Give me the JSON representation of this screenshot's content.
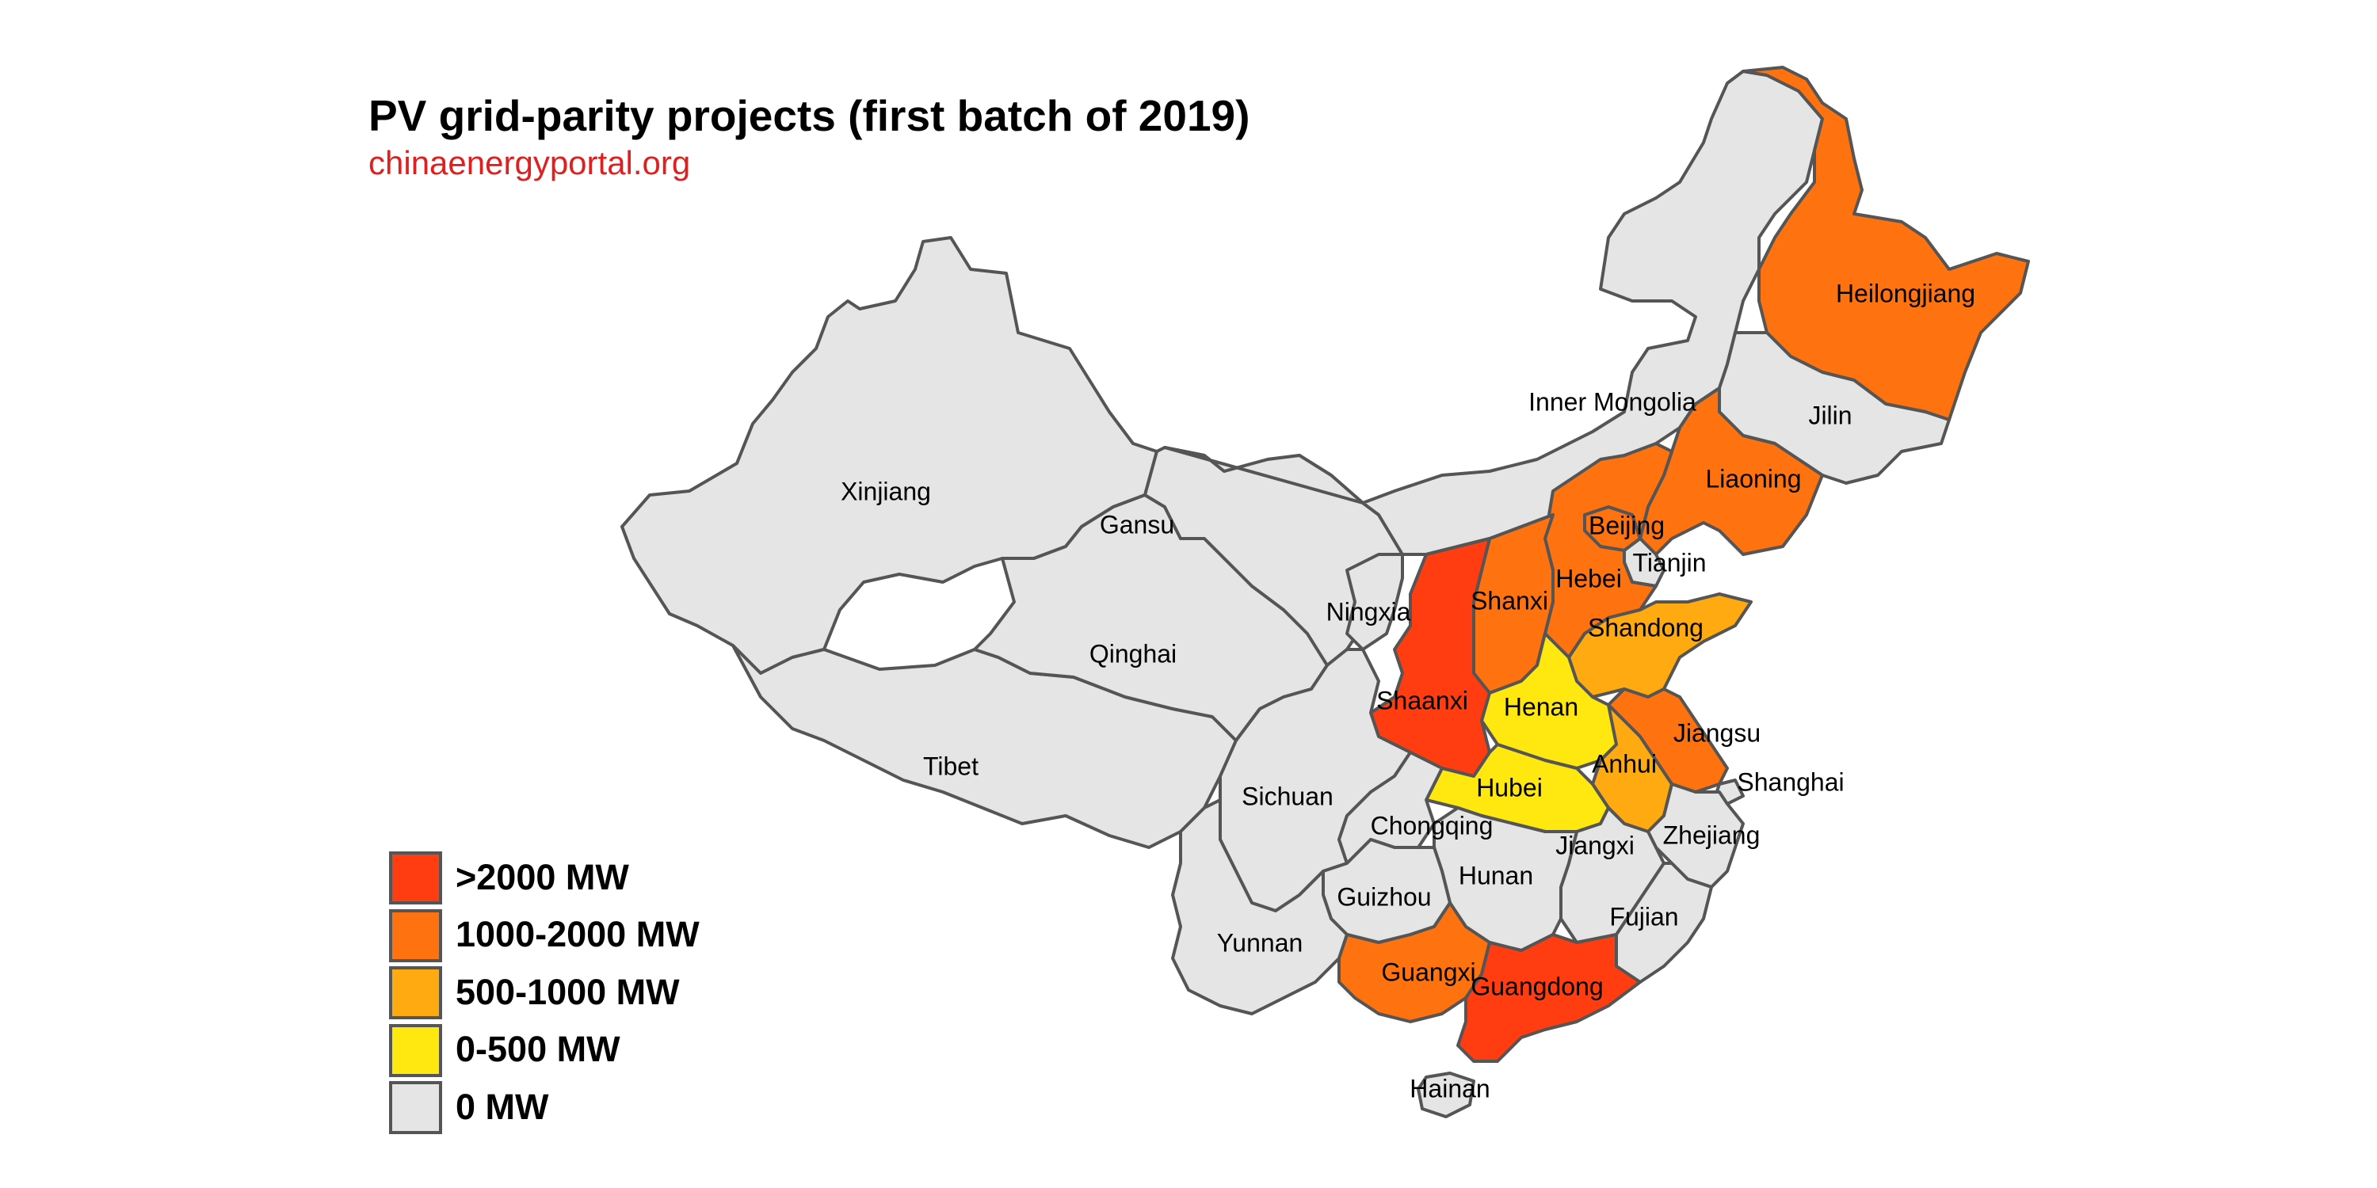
{
  "title": "PV grid-parity projects (first batch of 2019)",
  "subtitle": "chinaenergyportal.org",
  "colors": {
    "gt2000": "#ff3d10",
    "b1000_2000": "#ff7210",
    "b500_1000": "#ffaa10",
    "b0_500": "#ffe810",
    "zero": "#e5e5e5",
    "stroke": "#555555",
    "subtitle": "#e02020"
  },
  "legend": [
    {
      "label": ">2000 MW",
      "color": "#ff3d10"
    },
    {
      "label": "1000-2000 MW",
      "color": "#ff7210"
    },
    {
      "label": "500-1000 MW",
      "color": "#ffaa10"
    },
    {
      "label": "0-500 MW",
      "color": "#ffe810"
    },
    {
      "label": "0 MW",
      "color": "#e5e5e5"
    }
  ],
  "provinces": [
    {
      "name": "Xinjiang",
      "category": "0 MW"
    },
    {
      "name": "Tibet",
      "category": "0 MW"
    },
    {
      "name": "Qinghai",
      "category": "0 MW"
    },
    {
      "name": "Gansu",
      "category": "0 MW"
    },
    {
      "name": "Inner Mongolia",
      "category": "0 MW"
    },
    {
      "name": "Heilongjiang",
      "category": "1000-2000 MW"
    },
    {
      "name": "Jilin",
      "category": "0 MW"
    },
    {
      "name": "Liaoning",
      "category": "1000-2000 MW"
    },
    {
      "name": "Beijing",
      "category": "1000-2000 MW"
    },
    {
      "name": "Tianjin",
      "category": "0 MW"
    },
    {
      "name": "Hebei",
      "category": "1000-2000 MW"
    },
    {
      "name": "Shanxi",
      "category": "1000-2000 MW"
    },
    {
      "name": "Ningxia",
      "category": "0 MW"
    },
    {
      "name": "Shaanxi",
      "category": ">2000 MW"
    },
    {
      "name": "Shandong",
      "category": "500-1000 MW"
    },
    {
      "name": "Henan",
      "category": "0-500 MW"
    },
    {
      "name": "Jiangsu",
      "category": "1000-2000 MW"
    },
    {
      "name": "Anhui",
      "category": "500-1000 MW"
    },
    {
      "name": "Shanghai",
      "category": "0 MW"
    },
    {
      "name": "Hubei",
      "category": "0-500 MW"
    },
    {
      "name": "Sichuan",
      "category": "0 MW"
    },
    {
      "name": "Chongqing",
      "category": "0 MW"
    },
    {
      "name": "Zhejiang",
      "category": "0 MW"
    },
    {
      "name": "Jiangxi",
      "category": "0 MW"
    },
    {
      "name": "Hunan",
      "category": "0 MW"
    },
    {
      "name": "Guizhou",
      "category": "0 MW"
    },
    {
      "name": "Fujian",
      "category": "0 MW"
    },
    {
      "name": "Yunnan",
      "category": "0 MW"
    },
    {
      "name": "Guangxi",
      "category": "1000-2000 MW"
    },
    {
      "name": "Guangdong",
      "category": ">2000 MW"
    },
    {
      "name": "Hainan",
      "category": "0 MW"
    }
  ]
}
